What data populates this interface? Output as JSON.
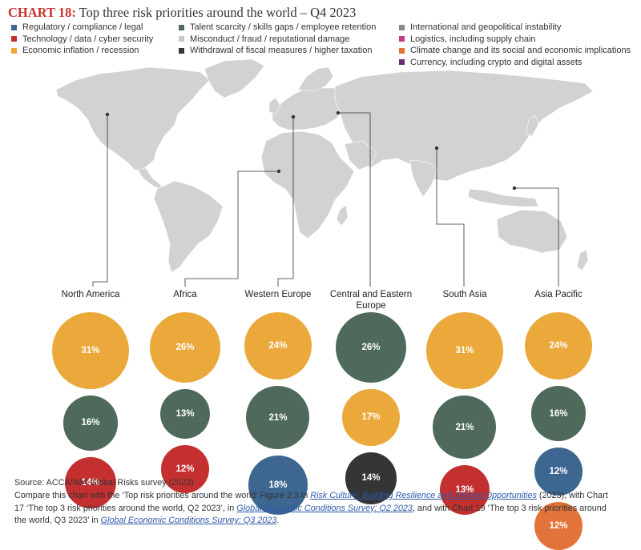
{
  "title": {
    "label": "CHART 18:",
    "text": " Top three risk priorities around the world – Q4 2023"
  },
  "colors": {
    "regulatory": "#3d6690",
    "technology": "#c4302f",
    "inflation": "#eaa93a",
    "talent": "#4f6a5b",
    "misconduct": "#c7c7c7",
    "fiscal": "#353535",
    "geopolitical": "#8a8a8a",
    "logistics": "#c4388a",
    "climate": "#e2733a",
    "currency": "#6b2c7a"
  },
  "legend": [
    {
      "key": "regulatory",
      "label": "Regulatory / compliance / legal"
    },
    {
      "key": "technology",
      "label": "Technology / data / cyber security"
    },
    {
      "key": "inflation",
      "label": "Economic inflation / recession"
    },
    {
      "key": "talent",
      "label": "Talent scarcity / skills gaps / employee retention"
    },
    {
      "key": "misconduct",
      "label": "Misconduct / fraud / reputational damage"
    },
    {
      "key": "fiscal",
      "label": "Withdrawal of fiscal measures / higher taxation"
    },
    {
      "key": "geopolitical",
      "label": "International and geopolitical instability"
    },
    {
      "key": "logistics",
      "label": "Logistics, including supply chain"
    },
    {
      "key": "climate",
      "label": "Climate change and its social and economic implications"
    },
    {
      "key": "currency",
      "label": "Currency, including crypto and digital assets"
    }
  ],
  "chart_data": {
    "type": "bubble",
    "title": "Top three risk priorities around the world – Q4 2023",
    "regions": [
      {
        "name": "North America",
        "risks": [
          {
            "key": "inflation",
            "label": "31%",
            "value": 31
          },
          {
            "key": "talent",
            "label": "16%",
            "value": 16
          },
          {
            "key": "technology",
            "label": "14%",
            "value": 14
          }
        ]
      },
      {
        "name": "Africa",
        "risks": [
          {
            "key": "inflation",
            "label": "26%",
            "value": 26
          },
          {
            "key": "talent",
            "label": "13%",
            "value": 13
          },
          {
            "key": "technology",
            "label": "12%",
            "value": 12
          }
        ]
      },
      {
        "name": "Western Europe",
        "risks": [
          {
            "key": "inflation",
            "label": "24%",
            "value": 24
          },
          {
            "key": "talent",
            "label": "21%",
            "value": 21
          },
          {
            "key": "regulatory",
            "label": "18%",
            "value": 18
          }
        ]
      },
      {
        "name": "Central and Eastern Europe",
        "risks": [
          {
            "key": "talent",
            "label": "26%",
            "value": 26
          },
          {
            "key": "inflation",
            "label": "17%",
            "value": 17
          },
          {
            "key": "fiscal",
            "label": "14%",
            "value": 14
          }
        ]
      },
      {
        "name": "South Asia",
        "risks": [
          {
            "key": "inflation",
            "label": "31%",
            "value": 31
          },
          {
            "key": "talent",
            "label": "21%",
            "value": 21
          },
          {
            "key": "technology",
            "label": "13%",
            "value": 13
          }
        ]
      },
      {
        "name": "Asia Pacific",
        "risks": [
          {
            "key": "inflation",
            "label": "24%",
            "value": 24
          },
          {
            "key": "talent",
            "label": "16%",
            "value": 16
          },
          {
            "key": "regulatory",
            "label": "12%",
            "value": 12
          },
          {
            "key": "climate",
            "label": "12%",
            "value": 12
          }
        ]
      }
    ]
  },
  "footer": {
    "source": "Source: ACCA/IMA Global Risks survey (2023)",
    "p1": "Compare this chart with the ‘Top risk priorities around the world’ Figure 2.3 in ",
    "link1": "Risk Culture: Building Resilience and Seizing Opportunities",
    "p2": " (2023), with Chart",
    "p3": "17 ‘The top 3 risk priorities around the world, Q2 2023’, in ",
    "link2": "Global Economic Conditions Survey: Q2 2023",
    "p4": ", and with Chart 19 ‘The top 3 risk priorities around",
    "p5": "the world, Q3 2023’ in ",
    "link3": "Global Economic Conditions Survey: Q3 2023",
    "p6": "."
  }
}
